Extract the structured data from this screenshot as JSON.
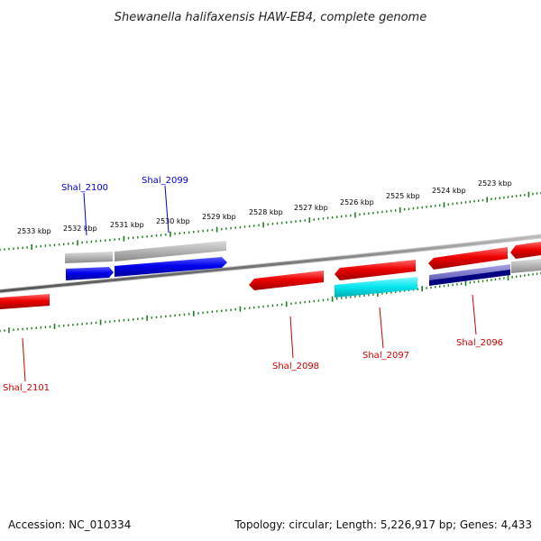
{
  "title": "Shewanella halifaxensis HAW-EB4, complete genome",
  "accession_text": "Accession: NC_010334",
  "summary_text": "Topology: circular; Length: 5,226,917 bp; Genes: 4,433",
  "colors": {
    "backbone": "#777777",
    "tick": "#1e7d1e",
    "forward_gene": "#0000ee",
    "reverse_gene": "#ee0000",
    "highlight_gene": "#00e5ee",
    "grey_gene": "#b3b3b3",
    "purple_gene": "#7570c8",
    "navy_gene": "#000080",
    "label_blue": "#0000cc",
    "label_red": "#cc0000"
  },
  "scale_labels": {
    "top": [
      "2533 kbp",
      "2532 kbp",
      "2531 kbp",
      "2530 kbp",
      "2529 kbp",
      "2528 kbp",
      "2527 kbp",
      "2526 kbp",
      "2525 kbp",
      "2524 kbp",
      "2523 kbp"
    ]
  },
  "gene_labels": {
    "shal_2100": "Shal_2100",
    "shal_2099": "Shal_2099",
    "shal_2098": "Shal_2098",
    "shal_2097": "Shal_2097",
    "shal_2096": "Shal_2096",
    "shal_2101": "Shal_2101"
  }
}
